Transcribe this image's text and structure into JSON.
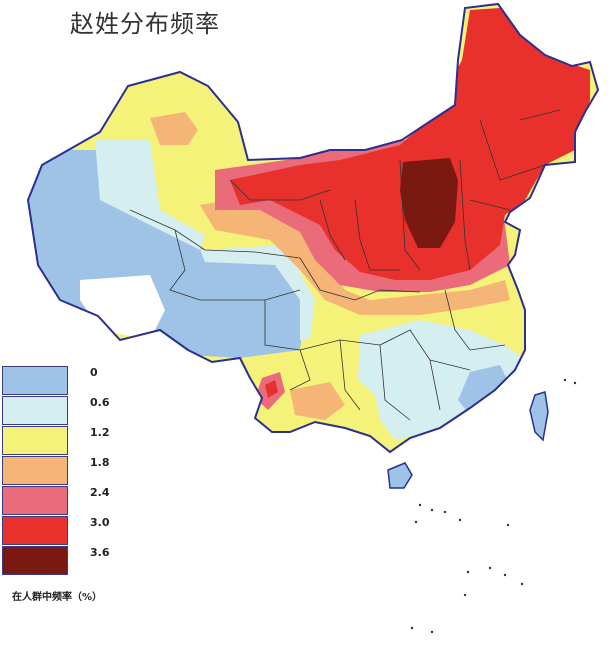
{
  "title": "赵姓分布频率",
  "legend": {
    "items": [
      {
        "label": "0",
        "color": "#9fc2e7"
      },
      {
        "label": "0.6",
        "color": "#d5eef0"
      },
      {
        "label": "1.2",
        "color": "#f5f27a"
      },
      {
        "label": "1.8",
        "color": "#f4b577"
      },
      {
        "label": "2.4",
        "color": "#ea6b7a"
      },
      {
        "label": "3.0",
        "color": "#e8302c"
      },
      {
        "label": "3.6",
        "color": "#7a1812"
      }
    ],
    "caption": "在人群中频率（%）"
  },
  "colors": {
    "border": "#2b2f8f",
    "province_lines": "#333333",
    "background": "#ffffff"
  }
}
